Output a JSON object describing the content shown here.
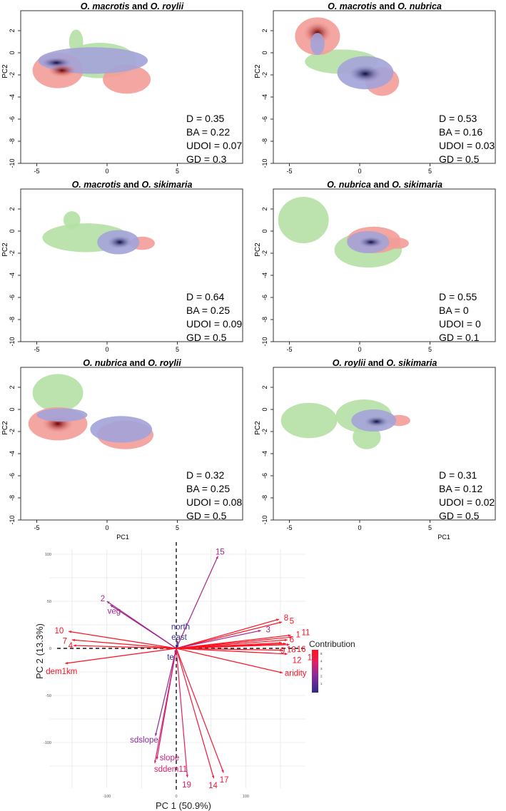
{
  "chart_data": [
    {
      "type": "heatmap",
      "panels": [
        {
          "sp1": "O. macrotis",
          "and": "and",
          "sp2": "O. roylii",
          "stats": [
            "D = 0.35",
            "BA = 0.22",
            "UDOI = 0.07",
            "GD = 0.3"
          ],
          "regions": [
            [
              "green",
              -0.5,
              -0.7,
              2.6,
              1.6
            ],
            [
              "green",
              -2.2,
              1,
              0.5,
              1.1
            ],
            [
              "red",
              -3.5,
              -1.6,
              1.8,
              1.6
            ],
            [
              "red",
              1.4,
              -2.4,
              1.7,
              1.3
            ],
            [
              "blue",
              -1,
              -0.7,
              3.9,
              1.2
            ],
            [
              "coreblue",
              -3.6,
              -0.9,
              1.1,
              0.5
            ],
            [
              "corered",
              -3.2,
              -1.6,
              1,
              0.6
            ]
          ]
        },
        {
          "sp1": "O. macrotis",
          "and": "and",
          "sp2": "O. nubrica",
          "stats": [
            "D = 0.53",
            "BA = 0.16",
            "UDOI = 0.03",
            "GD = 0.5"
          ],
          "regions": [
            [
              "green",
              -1.3,
              -0.8,
              2.6,
              1.1
            ],
            [
              "red",
              -3,
              1.5,
              1.6,
              1.7
            ],
            [
              "corered",
              -3,
              1.8,
              1,
              1
            ],
            [
              "red",
              1.6,
              -2.6,
              1.2,
              1.3
            ],
            [
              "blue",
              0.4,
              -1.8,
              2,
              1.5
            ],
            [
              "coreblue",
              0.4,
              -1.9,
              1.2,
              0.8
            ],
            [
              "blue",
              -3,
              0.8,
              0.5,
              1
            ]
          ]
        },
        {
          "sp1": "O. macrotis",
          "and": "and",
          "sp2": "O. sikimaria",
          "stats": [
            "D = 0.64",
            "BA = 0.25",
            "UDOI = 0.09",
            "GD = 0.5"
          ],
          "regions": [
            [
              "green",
              -1.5,
              -0.6,
              3.1,
              1.3
            ],
            [
              "green",
              -2.5,
              1,
              0.6,
              0.8
            ],
            [
              "red",
              2.5,
              -1.1,
              0.9,
              0.6
            ],
            [
              "blue",
              0.8,
              -1,
              1.5,
              1.1
            ],
            [
              "coreblue",
              0.9,
              -1,
              0.9,
              0.6
            ]
          ]
        },
        {
          "sp1": "O. nubrica",
          "and": "and",
          "sp2": "O. sikimaria",
          "stats": [
            "D = 0.55",
            "BA = 0",
            "UDOI = 0",
            "GD = 0.1"
          ],
          "regions": [
            [
              "green",
              -4,
              1,
              1.8,
              2.1
            ],
            [
              "green",
              0.6,
              -1.7,
              2.4,
              1.6
            ],
            [
              "red",
              1,
              -0.8,
              1.9,
              1.2
            ],
            [
              "red",
              2.7,
              -1.1,
              0.8,
              0.5
            ],
            [
              "blue",
              0.6,
              -1,
              1.5,
              1
            ],
            [
              "coreblue",
              0.8,
              -1,
              0.9,
              0.5
            ]
          ]
        },
        {
          "sp1": "O. nubrica",
          "and": "and",
          "sp2": "O. roylii",
          "stats": [
            "D = 0.32",
            "BA = 0.25",
            "UDOI = 0.08",
            "GD = 0.5"
          ],
          "regions": [
            [
              "green",
              -3.5,
              1.5,
              1.8,
              1.7
            ],
            [
              "red",
              -3.5,
              -1.3,
              2.1,
              1.5
            ],
            [
              "corered",
              -3.5,
              -1.3,
              1.1,
              0.8
            ],
            [
              "red",
              1.3,
              -2.3,
              2,
              1.3
            ],
            [
              "blue",
              1,
              -1.8,
              2.2,
              1.2
            ],
            [
              "blue",
              -3.2,
              -0.5,
              1.8,
              0.6
            ]
          ]
        },
        {
          "sp1": "O. roylii",
          "and": "and",
          "sp2": "O. sikimaria",
          "stats": [
            "D = 0.31",
            "BA = 0.12",
            "UDOI = 0.02",
            "GD = 0.5"
          ],
          "regions": [
            [
              "green",
              -3.6,
              -1,
              2,
              1.6
            ],
            [
              "green",
              0.3,
              -0.6,
              2,
              1.5
            ],
            [
              "green",
              0.5,
              -2.5,
              1,
              1.1
            ],
            [
              "red",
              2.8,
              -1,
              0.8,
              0.5
            ],
            [
              "blue",
              1,
              -1,
              1.6,
              1
            ],
            [
              "coreblue",
              1.2,
              -1.1,
              0.9,
              0.5
            ]
          ]
        }
      ],
      "xticks": [
        "-5",
        "0",
        "5"
      ],
      "xtick_values": [
        -5,
        0,
        5
      ],
      "yticks": [
        "2",
        "0",
        "-2",
        "-4",
        "-6",
        "-8",
        "-10"
      ],
      "ytick_values": [
        2,
        0,
        -2,
        -4,
        -6,
        -8,
        -10
      ],
      "ylabel": "PC2",
      "xlabel": "PC1"
    },
    {
      "type": "biplot",
      "xlabel": "PC 1 (50.9%)",
      "ylabel": "PC 2 (13.3%)",
      "xticks": [
        "-100",
        "0",
        "100"
      ],
      "xtick_values": [
        -100,
        0,
        100
      ],
      "yticks": [
        "100",
        "50",
        "0",
        "-50",
        "-100"
      ],
      "ytick_values": [
        100,
        50,
        0,
        -50,
        -100
      ],
      "legend": {
        "title": "Contribution",
        "ticks": [
          "5",
          "4",
          "3",
          "2",
          "1"
        ],
        "position": "right"
      },
      "vectors": [
        {
          "label": "15",
          "x": 60,
          "y": 98,
          "c": 2.5
        },
        {
          "label": "2",
          "x": -100,
          "y": 50,
          "c": 2.5
        },
        {
          "label": "veg",
          "x": -95,
          "y": 46,
          "c": 2.3
        },
        {
          "label": "north",
          "x": 2,
          "y": 8,
          "c": 0.8
        },
        {
          "label": "east",
          "x": 3,
          "y": 4,
          "c": 0.8
        },
        {
          "label": "te",
          "x": -2,
          "y": -5,
          "c": 0.8
        },
        {
          "label": "10",
          "x": -155,
          "y": 18,
          "c": 5
        },
        {
          "label": "7",
          "x": -150,
          "y": 9,
          "c": 5
        },
        {
          "label": "4",
          "x": -148,
          "y": 3,
          "c": 5
        },
        {
          "label": "dem1km",
          "x": -160,
          "y": -16,
          "c": 5
        },
        {
          "label": "8",
          "x": 148,
          "y": 31,
          "c": 5
        },
        {
          "label": "5",
          "x": 152,
          "y": 28,
          "c": 5
        },
        {
          "label": "3",
          "x": 122,
          "y": 19,
          "c": 2.5
        },
        {
          "label": "1",
          "x": 165,
          "y": 14,
          "c": 5
        },
        {
          "label": "11",
          "x": 167,
          "y": 12,
          "c": 5
        },
        {
          "label": "6",
          "x": 160,
          "y": 9,
          "c": 5
        },
        {
          "label": "18",
          "x": 152,
          "y": 6,
          "c": 5
        },
        {
          "label": "16",
          "x": 158,
          "y": 5,
          "c": 5
        },
        {
          "label": "13",
          "x": 163,
          "y": 4,
          "c": 5
        },
        {
          "label": "9",
          "x": 153,
          "y": -2,
          "c": 5
        },
        {
          "label": "12",
          "x": 160,
          "y": -6,
          "c": 5
        },
        {
          "label": "aridity",
          "x": 153,
          "y": -26,
          "c": 5
        },
        {
          "label": "sdslope",
          "x": -30,
          "y": -93,
          "c": 2
        },
        {
          "label": "slope",
          "x": -28,
          "y": -118,
          "c": 3
        },
        {
          "label": "sddem11",
          "x": -31,
          "y": -122,
          "c": 3.5
        },
        {
          "label": "19",
          "x": 16,
          "y": -137,
          "c": 3.8
        },
        {
          "label": "14",
          "x": 54,
          "y": -138,
          "c": 4.5
        },
        {
          "label": "17",
          "x": 68,
          "y": -132,
          "c": 4.5
        }
      ]
    }
  ]
}
